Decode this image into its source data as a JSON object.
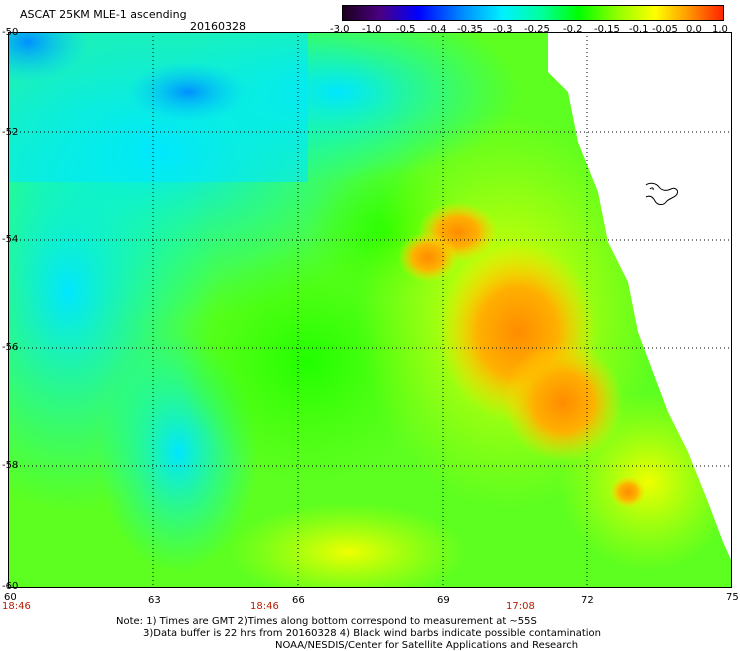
{
  "header": {
    "product_title": "ASCAT 25KM MLE-1 ascending",
    "date": "20160328"
  },
  "colorbar": {
    "labels": [
      "-3.0",
      "-1.0",
      "-0.5",
      "-0.4",
      "-0.35",
      "-0.3",
      "-0.25",
      "-0.2",
      "-0.15",
      "-0.1",
      "-0.05",
      "0.0",
      "1.0"
    ],
    "colors": [
      "#1a001a",
      "#4b0082",
      "#0000ff",
      "#0060ff",
      "#00a0ff",
      "#00e5ff",
      "#00ffb0",
      "#00ff00",
      "#7fff00",
      "#ffff00",
      "#ffb000",
      "#ff6000",
      "#ff0000"
    ]
  },
  "map": {
    "lat_labels": [
      "-50",
      "-52",
      "-54",
      "-56",
      "-58",
      "-60"
    ],
    "lon_labels": [
      "60",
      "63",
      "66",
      "69",
      "72",
      "75"
    ],
    "time_labels": [
      "18:46",
      "18:46",
      "17:08"
    ]
  },
  "footer": {
    "line1": "Note: 1) Times are GMT 2)Times along bottom correspond to measurement at ~55S",
    "line2": "3)Data buffer is 22 hrs from 20160328 4) Black wind barbs indicate possible contamination",
    "line3": "NOAA/NESDIS/Center for Satellite Applications and Research"
  }
}
